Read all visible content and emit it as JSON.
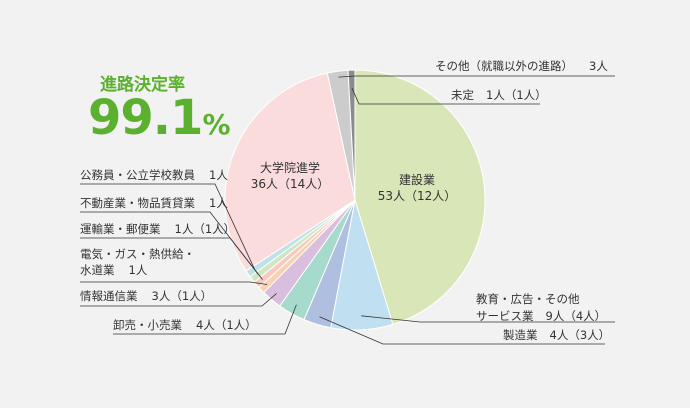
{
  "headline": {
    "label": "進路決定率",
    "value": "99.1",
    "unit": "%"
  },
  "chart_data": {
    "type": "pie",
    "start": "top",
    "direction": "clockwise",
    "slices": [
      {
        "name": "建設業",
        "value": 53,
        "label": "53人（12人）",
        "color": "#d8e6b8",
        "legend": "inner"
      },
      {
        "name": "教育・広告・その他サービス業",
        "name_line1": "教育・広告・その他",
        "name_line2": "サービス業",
        "value": 9,
        "label": "9人（4人）",
        "color": "#c0e0f2",
        "legend": "right"
      },
      {
        "name": "製造業",
        "value": 4,
        "label": "4人（3人）",
        "color": "#aebfdf",
        "legend": "right"
      },
      {
        "name": "卸売・小売業",
        "value": 4,
        "label": "4人（1人）",
        "color": "#a6dacd",
        "legend": "left"
      },
      {
        "name": "情報通信業",
        "value": 3,
        "label": "3人（1人）",
        "color": "#d9bfdd",
        "legend": "left"
      },
      {
        "name": "電気・ガス・熱供給・水道業",
        "name_line1": "電気・ガス・熱供給・",
        "name_line2": "水道業",
        "value": 1,
        "label": "1人",
        "color": "#f6d2b0",
        "legend": "left"
      },
      {
        "name": "運輸業・郵便業",
        "value": 1,
        "label": "1人（1人）",
        "color": "#f9c8bf",
        "legend": "left"
      },
      {
        "name": "不動産業・物品賃貸業",
        "value": 1,
        "label": "1人",
        "color": "#cfe7c2",
        "legend": "left"
      },
      {
        "name": "公務員・公立学校教員",
        "value": 1,
        "label": "1人",
        "color": "#bfe2e6",
        "legend": "left"
      },
      {
        "name": "大学院進学",
        "value": 36,
        "label": "36人（14人）",
        "color": "#fadcdc",
        "legend": "inner"
      },
      {
        "name": "その他（就職以外の進路）",
        "value": 3,
        "label": "3人",
        "color": "#cccccc",
        "legend": "right"
      },
      {
        "name": "未定",
        "value": 1,
        "label": "1人（1人）",
        "color": "#8c8c8c",
        "legend": "right"
      }
    ]
  }
}
